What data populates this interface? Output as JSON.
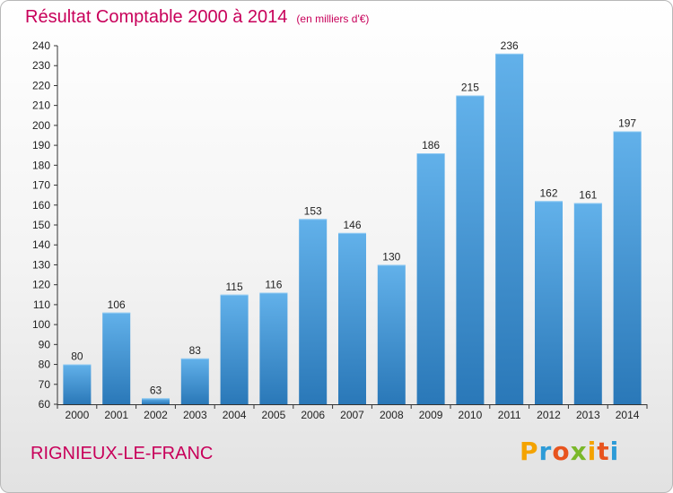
{
  "header": {
    "title": "Résultat Comptable 2000 à 2014",
    "unit": "(en milliers d'€)"
  },
  "footer": {
    "town": "RIGNIEUX-LE-FRANC",
    "logo": "Proxiti"
  },
  "colors": {
    "title": "#c8005a",
    "bar_top": "#62b1ea",
    "bar_bottom": "#2a78b8",
    "axis": "#333333",
    "logo": [
      "#f4a300",
      "#2d9bd7",
      "#e8541e",
      "#7ab829",
      "#f4a300",
      "#e8541e",
      "#2d9bd7"
    ]
  },
  "chart_data": {
    "type": "bar",
    "title": "Résultat Comptable 2000 à 2014",
    "ylabel": "(en milliers d'€)",
    "xlabel": "",
    "categories": [
      "2000",
      "2001",
      "2002",
      "2003",
      "2004",
      "2005",
      "2006",
      "2007",
      "2008",
      "2009",
      "2010",
      "2011",
      "2012",
      "2013",
      "2014"
    ],
    "values": [
      80,
      106,
      63,
      83,
      115,
      116,
      153,
      146,
      130,
      186,
      215,
      236,
      162,
      161,
      197
    ],
    "ylim": [
      60,
      240
    ],
    "yticks": [
      60,
      70,
      80,
      90,
      100,
      110,
      120,
      130,
      140,
      150,
      160,
      170,
      180,
      190,
      200,
      210,
      220,
      230,
      240
    ],
    "grid": false,
    "legend": "none"
  }
}
